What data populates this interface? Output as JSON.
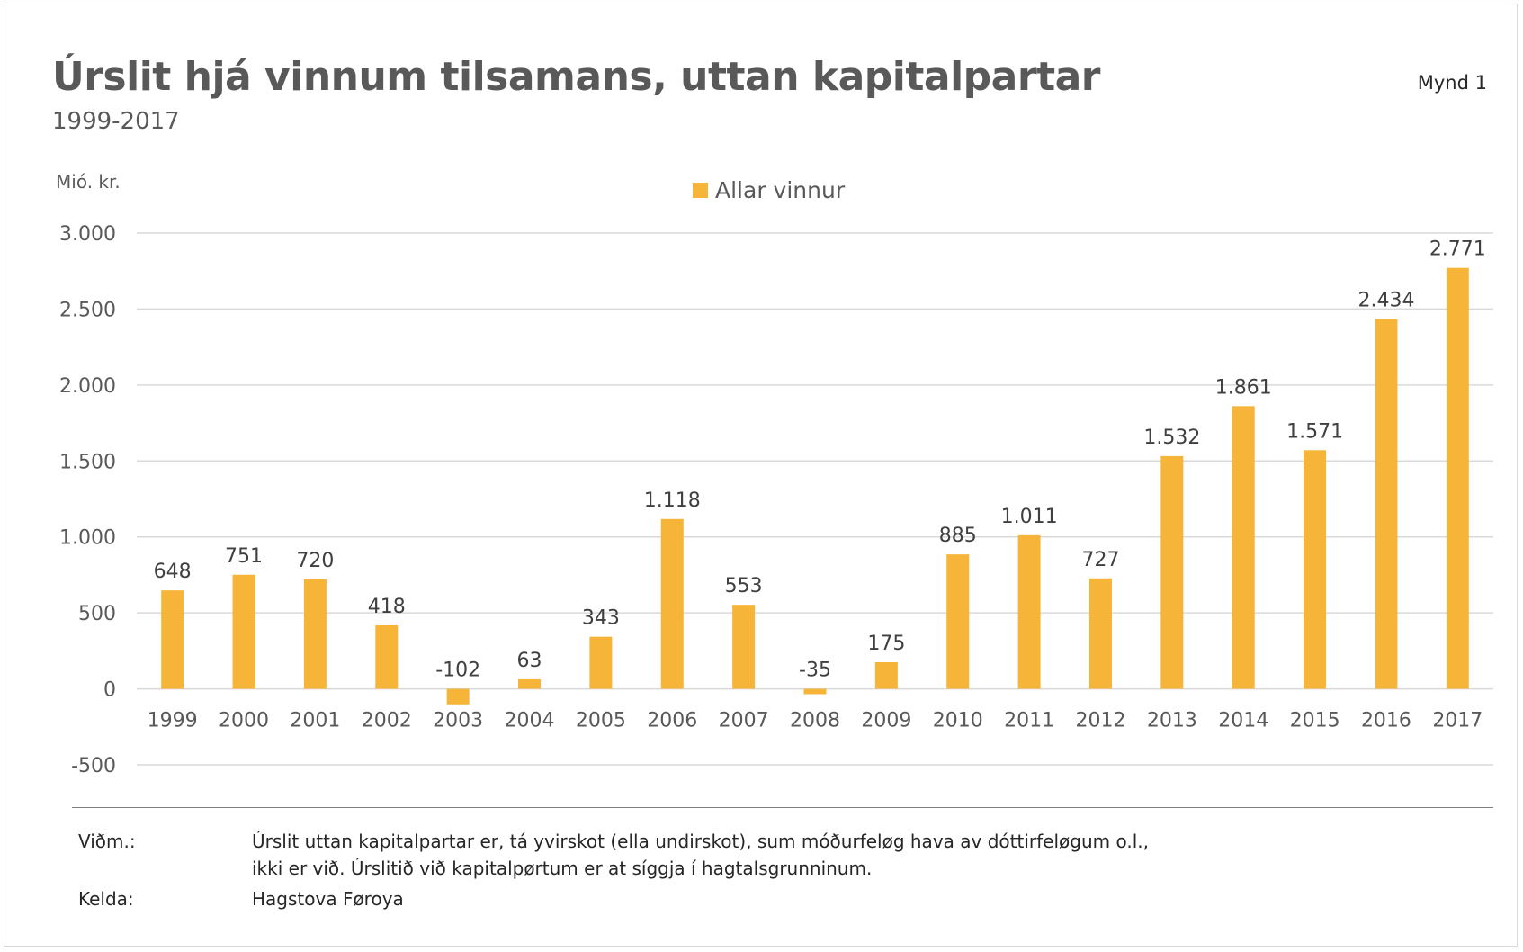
{
  "figure_label": "Mynd 1",
  "chart_data": {
    "type": "bar",
    "title": "Úrslit hjá vinnum tilsamans, uttan kapitalpartar",
    "subtitle": "1999-2017",
    "ylabel": "Mió. kr.",
    "legend": [
      "Allar vinnur"
    ],
    "legend_position": "top-center",
    "ylim": [
      -500,
      3000
    ],
    "yticks": [
      -500,
      0,
      500,
      1000,
      1500,
      2000,
      2500,
      3000
    ],
    "ytick_labels": [
      "-500",
      "0",
      "500",
      "1.000",
      "1.500",
      "2.000",
      "2.500",
      "3.000"
    ],
    "grid": true,
    "bar_color": "#F6B539",
    "categories": [
      "1999",
      "2000",
      "2001",
      "2002",
      "2003",
      "2004",
      "2005",
      "2006",
      "2007",
      "2008",
      "2009",
      "2010",
      "2011",
      "2012",
      "2013",
      "2014",
      "2015",
      "2016",
      "2017"
    ],
    "series": [
      {
        "name": "Allar vinnur",
        "values": [
          648,
          751,
          720,
          418,
          -102,
          63,
          343,
          1118,
          553,
          -35,
          175,
          885,
          1011,
          727,
          1532,
          1861,
          1571,
          2434,
          2771
        ],
        "labels": [
          "648",
          "751",
          "720",
          "418",
          "-102",
          "63",
          "343",
          "1.118",
          "553",
          "-35",
          "175",
          "885",
          "1.011",
          "727",
          "1.532",
          "1.861",
          "1.571",
          "2.434",
          "2.771"
        ]
      }
    ]
  },
  "notes": {
    "note_label": "Viðm.:",
    "note_line1": "Úrslit uttan kapitalpartar er, tá yvirskot (ella undirskot), sum móðurfeløg hava av dóttirfeløgum o.l.,",
    "note_line2": "ikki er við. Úrslitið við kapitalpørtum er at síggja í hagtalsgrunninum.",
    "source_label": "Kelda:",
    "source_text": "Hagstova Føroya"
  }
}
